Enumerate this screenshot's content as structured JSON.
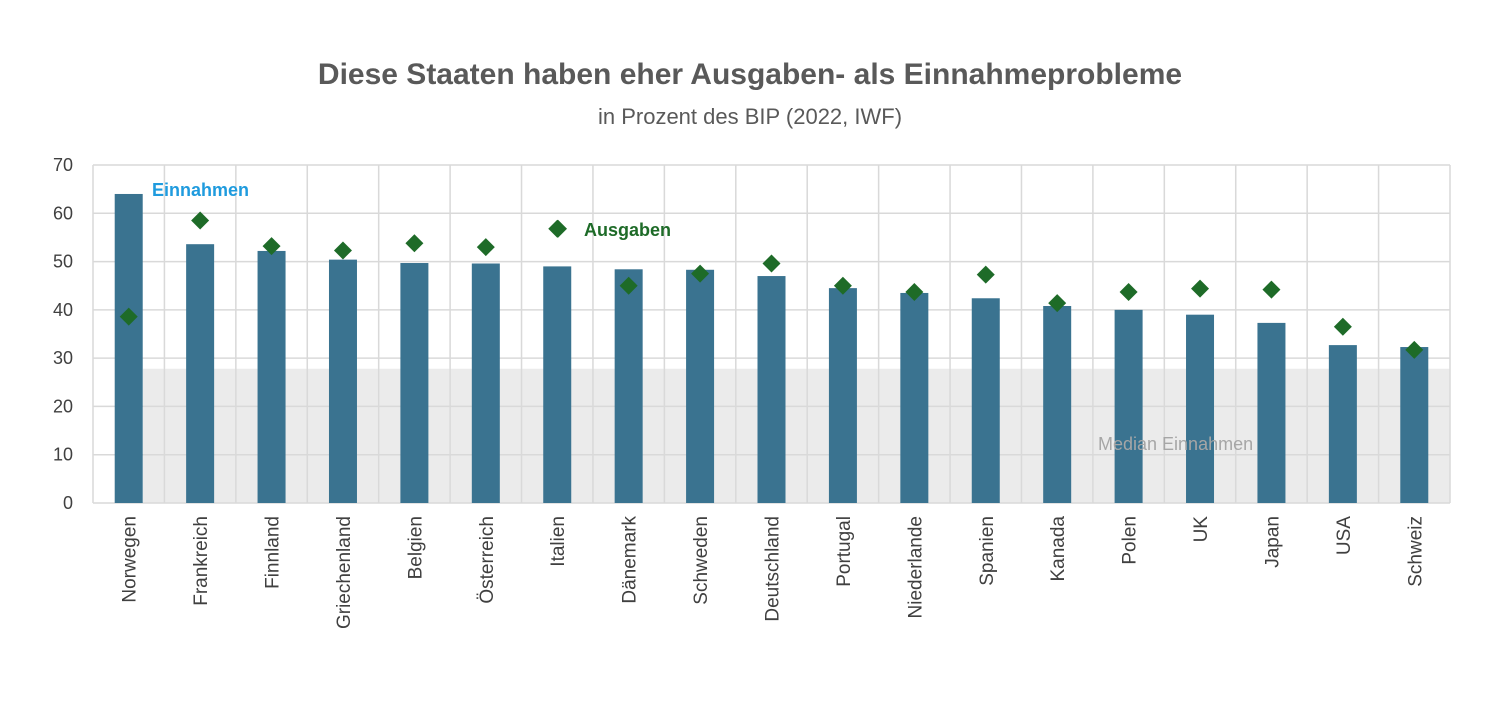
{
  "chart_data": {
    "type": "bar",
    "title": "Diese Staaten haben eher Ausgaben- als Einnahmeprobleme",
    "subtitle": "in Prozent des BIP (2022, IWF)",
    "categories": [
      "Norwegen",
      "Frankreich",
      "Finnland",
      "Griechenland",
      "Belgien",
      "Österreich",
      "Italien",
      "Dänemark",
      "Schweden",
      "Deutschland",
      "Portugal",
      "Niederlande",
      "Spanien",
      "Kanada",
      "Polen",
      "UK",
      "Japan",
      "USA",
      "Schweiz"
    ],
    "series": [
      {
        "name": "Einnahmen",
        "kind": "bar",
        "color": "#3A7390",
        "values": [
          64,
          53.6,
          52.2,
          50.4,
          49.7,
          49.6,
          49,
          48.4,
          48.3,
          47,
          44.5,
          43.5,
          42.4,
          40.8,
          40,
          39,
          37.3,
          32.7,
          32.3
        ]
      },
      {
        "name": "Ausgaben",
        "kind": "marker",
        "color": "#1E6B28",
        "values": [
          38.6,
          58.5,
          53.2,
          52.3,
          53.8,
          53,
          56.8,
          45,
          47.5,
          49.6,
          45,
          43.7,
          47.3,
          41.4,
          43.7,
          44.4,
          44.2,
          36.5,
          31.7
        ]
      }
    ],
    "median": {
      "label": "Median Einnahmen",
      "value": 27.8
    },
    "ylim": [
      0,
      70
    ],
    "yticks": [
      0,
      10,
      20,
      30,
      40,
      50,
      60,
      70
    ],
    "grid": true,
    "legend_inline": true
  },
  "colors": {
    "bar": "#3A7390",
    "marker": "#1E6B28",
    "einnahmen_label": "#1F9BDE",
    "ausgaben_label": "#1E6B28",
    "median_band": "#EBEBEB",
    "median_text": "#A6A6A6",
    "grid": "#D9D9D9"
  }
}
